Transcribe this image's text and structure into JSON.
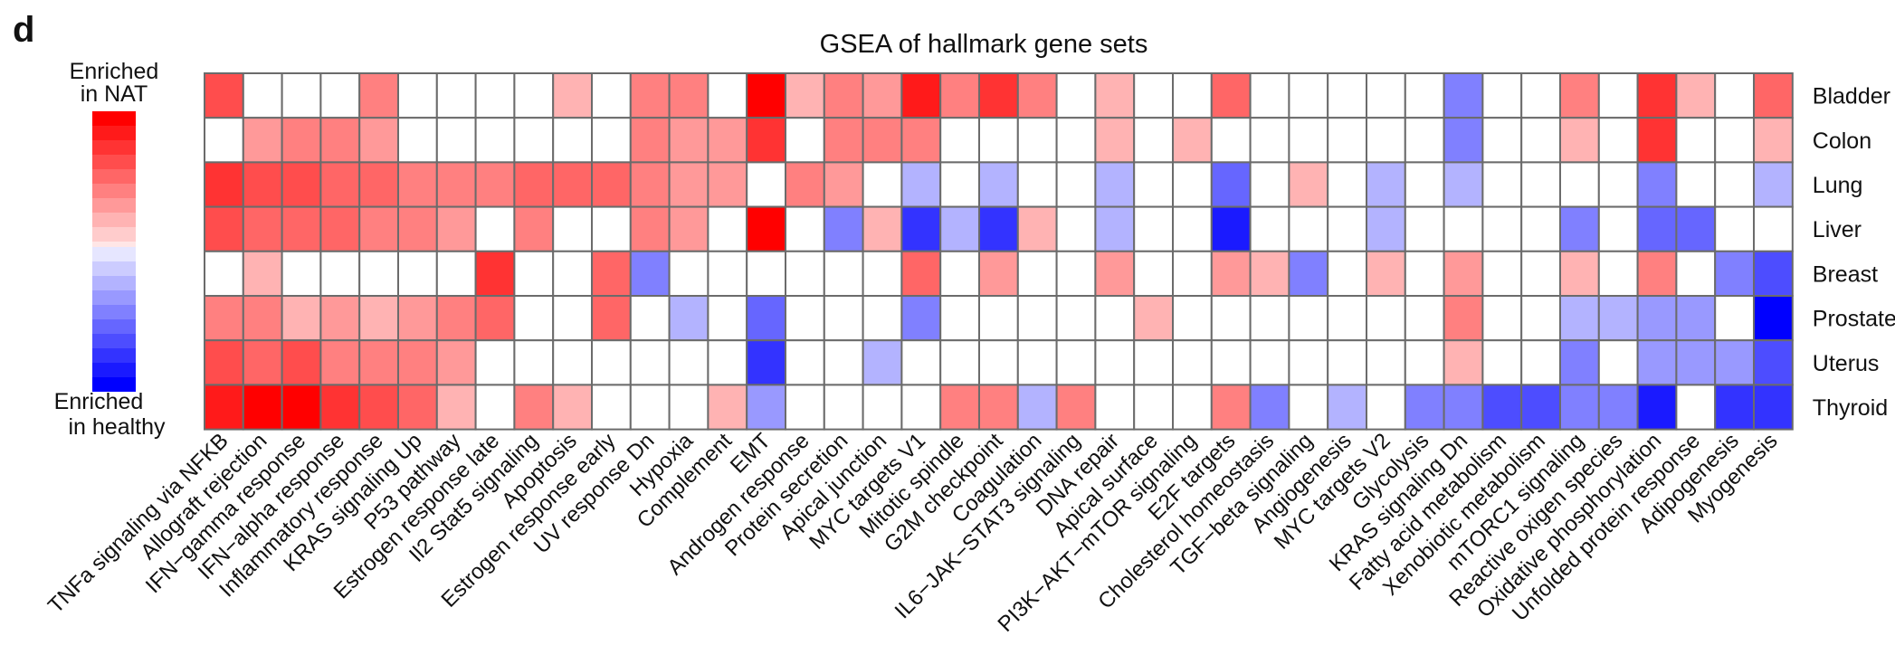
{
  "panel_label": "d",
  "chart_data": {
    "type": "heatmap",
    "title": "GSEA of hallmark gene sets",
    "legend": {
      "top_label_line1": "Enriched",
      "top_label_line2": "in NAT",
      "bottom_label_line1": "Enriched",
      "bottom_label_line2": "in healthy",
      "steps": 10
    },
    "rows": [
      "Bladder",
      "Colon",
      "Lung",
      "Liver",
      "Breast",
      "Prostate",
      "Uterus",
      "Thyroid"
    ],
    "columns": [
      "TNFa signaling via NFKB",
      "Allograft rejection",
      "IFN−gamma response",
      "IFN−alpha response",
      "Inflammatory response",
      "KRAS signaling Up",
      "P53 pathway",
      "Estrogen response late",
      "Il2 Stat5 signaling",
      "Apoptosis",
      "Estrogen response early",
      "UV response Dn",
      "Hypoxia",
      "Complement",
      "EMT",
      "Androgen response",
      "Protein secretion",
      "Apical junction",
      "MYC targets V1",
      "Mitotic spindle",
      "G2M checkpoint",
      "Coagulation",
      "IL6−JAK−STAT3 signaling",
      "DNA repair",
      "Apical surface",
      "PI3K−AKT−mTOR signaling",
      "E2F targets",
      "Cholesterol homeostasis",
      "TGF−beta signaling",
      "Angiogenesis",
      "MYC targets V2",
      "Glycolysis",
      "KRAS signaling Dn",
      "Fatty acid metabolism",
      "Xenobiotic metabolism",
      "mTORC1 signaling",
      "Reactive oxigen species",
      "Oxidative phosphorylation",
      "Unfolded protein response",
      "Adipogenesis",
      "Myogenesis"
    ],
    "scale": {
      "min": -10,
      "max": 10,
      "positive_color": "#ff0000",
      "negative_color": "#0000ff",
      "zero_color": "#ffffff"
    },
    "values": [
      [
        7,
        0,
        0,
        0,
        5,
        0,
        0,
        0,
        0,
        3,
        0,
        5,
        5,
        0,
        10,
        3,
        5,
        4,
        9,
        5,
        8,
        5,
        0,
        3,
        0,
        0,
        6,
        0,
        0,
        0,
        0,
        0,
        -5,
        0,
        0,
        5,
        0,
        8,
        3,
        0,
        6
      ],
      [
        0,
        4,
        5,
        5,
        4,
        0,
        0,
        0,
        0,
        0,
        0,
        5,
        4,
        4,
        8,
        0,
        5,
        5,
        5,
        0,
        0,
        0,
        0,
        3,
        0,
        3,
        0,
        0,
        0,
        0,
        0,
        0,
        -5,
        0,
        0,
        3,
        0,
        8,
        0,
        0,
        3
      ],
      [
        8,
        7,
        7,
        6,
        6,
        5,
        5,
        5,
        6,
        6,
        6,
        5,
        4,
        4,
        0,
        5,
        4,
        0,
        -3,
        0,
        -3,
        0,
        0,
        -3,
        0,
        0,
        -6,
        0,
        3,
        0,
        -3,
        0,
        -3,
        0,
        0,
        0,
        0,
        -5,
        0,
        0,
        -3
      ],
      [
        7,
        6,
        6,
        6,
        5,
        5,
        4,
        0,
        5,
        0,
        0,
        5,
        4,
        0,
        10,
        0,
        -5,
        3,
        -8,
        -3,
        -8,
        3,
        0,
        -3,
        0,
        0,
        -9,
        0,
        0,
        0,
        -3,
        0,
        0,
        0,
        0,
        -5,
        0,
        -6,
        -6,
        0,
        0
      ],
      [
        0,
        3,
        0,
        0,
        0,
        0,
        0,
        8,
        0,
        0,
        6,
        -5,
        0,
        0,
        0,
        0,
        0,
        0,
        6,
        0,
        4,
        0,
        0,
        4,
        0,
        0,
        4,
        3,
        -5,
        0,
        3,
        0,
        4,
        0,
        0,
        3,
        0,
        5,
        0,
        -5,
        -7
      ],
      [
        5,
        5,
        3,
        4,
        3,
        4,
        5,
        6,
        0,
        0,
        6,
        0,
        -3,
        0,
        -6,
        0,
        0,
        0,
        -5,
        0,
        0,
        0,
        0,
        0,
        3,
        0,
        0,
        0,
        0,
        0,
        0,
        0,
        5,
        0,
        0,
        -3,
        -3,
        -4,
        -4,
        0,
        -10
      ],
      [
        7,
        6,
        7,
        5,
        5,
        5,
        4,
        0,
        0,
        0,
        0,
        0,
        0,
        0,
        -8,
        0,
        0,
        -3,
        0,
        0,
        0,
        0,
        0,
        0,
        0,
        0,
        0,
        0,
        0,
        0,
        0,
        0,
        3,
        0,
        0,
        -5,
        0,
        -4,
        -4,
        -4,
        -7
      ],
      [
        9,
        10,
        10,
        8,
        7,
        6,
        3,
        0,
        5,
        3,
        0,
        0,
        0,
        3,
        -4,
        0,
        0,
        0,
        0,
        5,
        5,
        -3,
        5,
        0,
        0,
        0,
        5,
        -5,
        0,
        -3,
        0,
        -5,
        -5,
        -7,
        -7,
        -5,
        -5,
        -9,
        0,
        -8,
        -8
      ]
    ]
  }
}
